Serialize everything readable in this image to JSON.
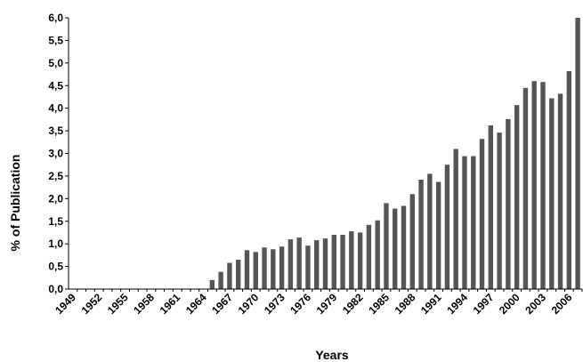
{
  "chart_data": {
    "type": "bar",
    "xlabel": "Years",
    "ylabel": "% of Publication",
    "ylim": [
      0,
      6
    ],
    "yticks": [
      "0,0",
      "0,5",
      "1,0",
      "1,5",
      "2,0",
      "2,5",
      "3,0",
      "3,5",
      "4,0",
      "4,5",
      "5,0",
      "5,5",
      "6,0"
    ],
    "xtick_labels": [
      "1949",
      "1952",
      "1955",
      "1958",
      "1961",
      "1964",
      "1967",
      "1970",
      "1973",
      "1976",
      "1979",
      "1982",
      "1985",
      "1988",
      "1991",
      "1994",
      "1997",
      "2000",
      "2003",
      "2006"
    ],
    "categories": [
      "1949",
      "1950",
      "1951",
      "1952",
      "1953",
      "1954",
      "1955",
      "1956",
      "1957",
      "1958",
      "1959",
      "1960",
      "1961",
      "1962",
      "1963",
      "1964",
      "1965",
      "1966",
      "1967",
      "1968",
      "1969",
      "1970",
      "1971",
      "1972",
      "1973",
      "1974",
      "1975",
      "1976",
      "1977",
      "1978",
      "1979",
      "1980",
      "1981",
      "1982",
      "1983",
      "1984",
      "1985",
      "1986",
      "1987",
      "1988",
      "1989",
      "1990",
      "1991",
      "1992",
      "1993",
      "1994",
      "1995",
      "1996",
      "1997",
      "1998",
      "1999",
      "2000",
      "2001",
      "2002",
      "2003",
      "2004",
      "2005",
      "2006",
      "2007"
    ],
    "values": [
      0,
      0,
      0,
      0,
      0,
      0,
      0,
      0,
      0,
      0,
      0,
      0,
      0,
      0,
      0,
      0,
      0.2,
      0.38,
      0.58,
      0.65,
      0.86,
      0.82,
      0.92,
      0.88,
      0.94,
      1.1,
      1.14,
      0.96,
      1.08,
      1.12,
      1.2,
      1.2,
      1.28,
      1.25,
      1.42,
      1.52,
      1.9,
      1.78,
      1.84,
      2.1,
      2.42,
      2.55,
      2.37,
      2.75,
      3.1,
      2.94,
      2.94,
      3.32,
      3.62,
      3.46,
      3.76,
      4.07,
      4.45,
      4.6,
      4.58,
      4.22,
      4.32,
      4.82,
      6.0
    ],
    "bar_color": "#555555",
    "grid": false,
    "legend": "none"
  }
}
